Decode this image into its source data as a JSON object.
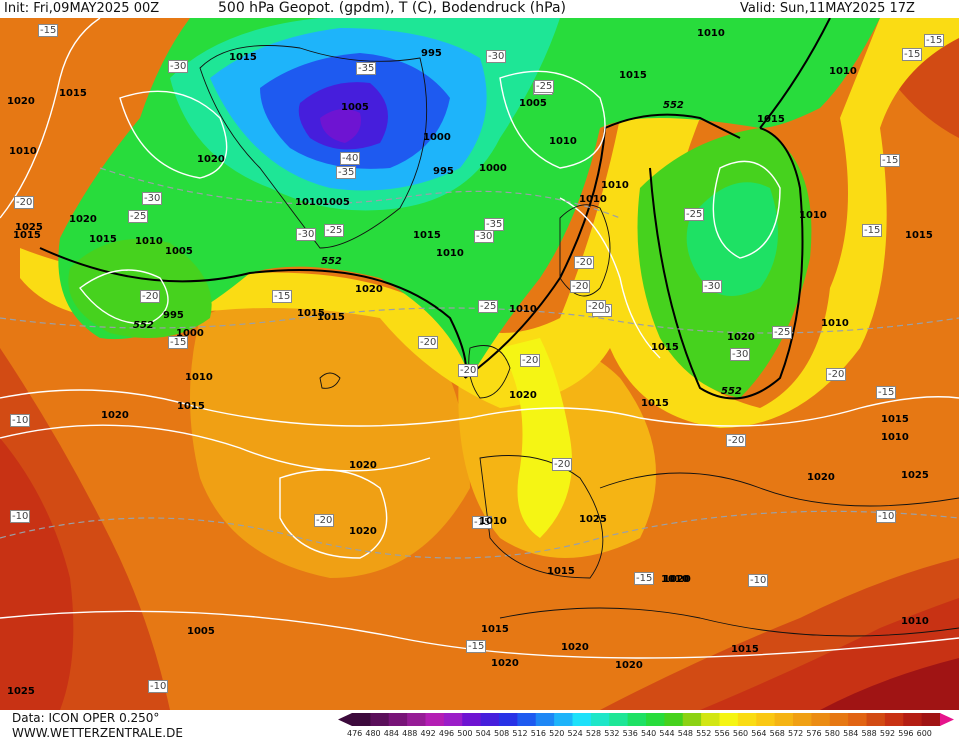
{
  "header": {
    "init": "Init: Fri,09MAY2025 00Z",
    "title": "500 hPa Geopot. (gpdm), T (C), Bodendruck (hPa)",
    "valid": "Valid: Sun,11MAY2025 17Z"
  },
  "footer": {
    "data_source": "Data: ICON OPER 0.250°",
    "website": "WWW.WETTERZENTRALE.DE"
  },
  "legend": {
    "levels": [
      "476",
      "480",
      "484",
      "488",
      "492",
      "496",
      "500",
      "504",
      "508",
      "512",
      "516",
      "520",
      "524",
      "528",
      "532",
      "536",
      "540",
      "544",
      "548",
      "552",
      "556",
      "560",
      "564",
      "568",
      "572",
      "576",
      "580",
      "584",
      "588",
      "592",
      "596",
      "600"
    ],
    "colors": [
      "#3c0a3c",
      "#5a0f5a",
      "#781478",
      "#961c96",
      "#b41eb4",
      "#9b1ec8",
      "#6e14d2",
      "#461edc",
      "#2832e6",
      "#1e5af0",
      "#1e87f5",
      "#1eb4fa",
      "#1ee1fa",
      "#1ee6c8",
      "#1ee696",
      "#1ee164",
      "#28dc3c",
      "#46d21e",
      "#8cd214",
      "#d2e614",
      "#f5f514",
      "#fadc14",
      "#fac814",
      "#f5b414",
      "#f0a014",
      "#eb8c14",
      "#e67814",
      "#e16414",
      "#d24b14",
      "#c83214",
      "#b41e14",
      "#a01414"
    ]
  },
  "labels": {
    "temperature": [
      {
        "t": "-15"
      },
      {
        "t": "-30"
      },
      {
        "t": "-35"
      },
      {
        "t": "-30"
      },
      {
        "t": "-35"
      },
      {
        "t": "-40"
      },
      {
        "t": "-35"
      },
      {
        "t": "-30"
      },
      {
        "t": "-25"
      },
      {
        "t": "-20"
      },
      {
        "t": "-25"
      },
      {
        "t": "-30"
      },
      {
        "t": "-35"
      },
      {
        "t": "-30"
      },
      {
        "t": "-25"
      },
      {
        "t": "-20"
      },
      {
        "t": "-15"
      },
      {
        "t": "-15"
      },
      {
        "t": "-20"
      },
      {
        "t": "-25"
      },
      {
        "t": "-25"
      },
      {
        "t": "-30"
      },
      {
        "t": "-30"
      },
      {
        "t": "-25"
      },
      {
        "t": "-20"
      },
      {
        "t": "-20"
      },
      {
        "t": "-20"
      },
      {
        "t": "-20"
      },
      {
        "t": "-20"
      },
      {
        "t": "-15"
      },
      {
        "t": "-15"
      },
      {
        "t": "-15"
      },
      {
        "t": "-20"
      },
      {
        "t": "-15"
      },
      {
        "t": "-10"
      },
      {
        "t": "-10"
      },
      {
        "t": "-10"
      },
      {
        "t": "-10"
      },
      {
        "t": "-20"
      },
      {
        "t": "-15"
      },
      {
        "t": "-10"
      },
      {
        "t": "-20"
      },
      {
        "t": "-15"
      },
      {
        "t": "-15"
      },
      {
        "t": "-15"
      },
      {
        "t": "-20"
      },
      {
        "t": "-20"
      }
    ],
    "pressure": [
      {
        "t": "1015"
      },
      {
        "t": "1015"
      },
      {
        "t": "995"
      },
      {
        "t": "1005"
      },
      {
        "t": "1000"
      },
      {
        "t": "995"
      },
      {
        "t": "1000"
      },
      {
        "t": "1005"
      },
      {
        "t": "1010"
      },
      {
        "t": "1020"
      },
      {
        "t": "1015"
      },
      {
        "t": "1010"
      },
      {
        "t": "1005"
      },
      {
        "t": "1020"
      },
      {
        "t": "1015"
      },
      {
        "t": "1010"
      },
      {
        "t": "1005"
      },
      {
        "t": "995"
      },
      {
        "t": "1000"
      },
      {
        "t": "1025"
      },
      {
        "t": "1020"
      },
      {
        "t": "1010"
      },
      {
        "t": "1015"
      },
      {
        "t": "1020"
      },
      {
        "t": "1015"
      },
      {
        "t": "1010"
      },
      {
        "t": "1020"
      },
      {
        "t": "1020"
      },
      {
        "t": "1015"
      },
      {
        "t": "1020"
      },
      {
        "t": "1005"
      },
      {
        "t": "1010"
      },
      {
        "t": "1015"
      },
      {
        "t": "1025"
      },
      {
        "t": "1020"
      },
      {
        "t": "1010"
      },
      {
        "t": "1015"
      },
      {
        "t": "1015"
      },
      {
        "t": "1020"
      },
      {
        "t": "1015"
      },
      {
        "t": "1010"
      },
      {
        "t": "1010"
      },
      {
        "t": "1015"
      },
      {
        "t": "1010"
      },
      {
        "t": "1010"
      },
      {
        "t": "1010"
      },
      {
        "t": "1010"
      },
      {
        "t": "1015"
      },
      {
        "t": "1010"
      },
      {
        "t": "1015"
      },
      {
        "t": "1025"
      },
      {
        "t": "1020"
      },
      {
        "t": "1010"
      },
      {
        "t": "1010"
      },
      {
        "t": "1015"
      },
      {
        "t": "1020"
      },
      {
        "t": "1020"
      },
      {
        "t": "1020"
      },
      {
        "t": "1025"
      },
      {
        "t": "1020"
      },
      {
        "t": "1015"
      },
      {
        "t": "1015"
      },
      {
        "t": "1010"
      }
    ],
    "geopotential": [
      {
        "t": "552"
      },
      {
        "t": "552"
      },
      {
        "t": "552"
      },
      {
        "t": "552"
      }
    ]
  }
}
